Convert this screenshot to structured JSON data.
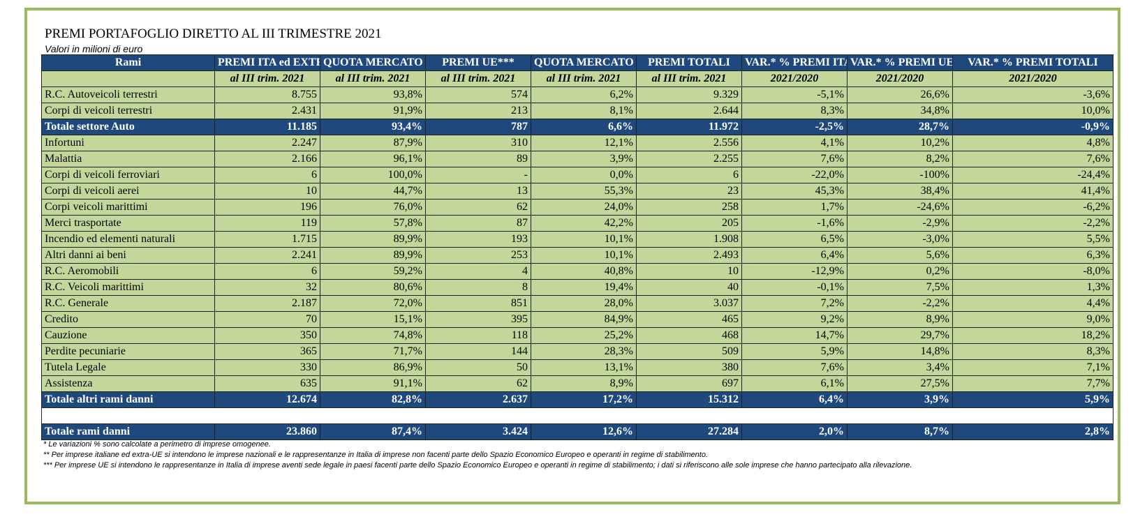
{
  "title": "PREMI PORTAFOGLIO DIRETTO AL III TRIMESTRE 2021",
  "subtitle": "Valori in milioni di euro",
  "header": [
    "Rami",
    "PREMI ITA ed EXTRA UE**",
    "QUOTA MERCATO ITA ed EXTRA UE",
    "PREMI UE***",
    "QUOTA MERCATO UE",
    "PREMI TOTALI",
    "VAR.* % PREMI ITA ed EXTRA UE",
    "VAR.* % PREMI UE",
    "VAR.* % PREMI TOTALI"
  ],
  "subheader": [
    "",
    "al III trim. 2021",
    "al III trim. 2021",
    "al III trim. 2021",
    "al III trim. 2021",
    "al III trim. 2021",
    "2021/2020",
    "2021/2020",
    "2021/2020"
  ],
  "auto_rows": [
    [
      "R.C. Autoveicoli terrestri",
      "8.755",
      "93,8%",
      "574",
      "6,2%",
      "9.329",
      "-5,1%",
      "26,6%",
      "-3,6%"
    ],
    [
      "Corpi di veicoli terrestri",
      "2.431",
      "91,9%",
      "213",
      "8,1%",
      "2.644",
      "8,3%",
      "34,8%",
      "10,0%"
    ]
  ],
  "total_auto": [
    "Totale settore Auto",
    "11.185",
    "93,4%",
    "787",
    "6,6%",
    "11.972",
    "-2,5%",
    "28,7%",
    "-0,9%"
  ],
  "other_rows": [
    [
      "Infortuni",
      "2.247",
      "87,9%",
      "310",
      "12,1%",
      "2.556",
      "4,1%",
      "10,2%",
      "4,8%"
    ],
    [
      "Malattia",
      "2.166",
      "96,1%",
      "89",
      "3,9%",
      "2.255",
      "7,6%",
      "8,2%",
      "7,6%"
    ],
    [
      "Corpi di veicoli ferroviari",
      "6",
      "100,0%",
      "-",
      "0,0%",
      "6",
      "-22,0%",
      "-100%",
      "-24,4%"
    ],
    [
      "Corpi di veicoli aerei",
      "10",
      "44,7%",
      "13",
      "55,3%",
      "23",
      "45,3%",
      "38,4%",
      "41,4%"
    ],
    [
      "Corpi veicoli marittimi",
      "196",
      "76,0%",
      "62",
      "24,0%",
      "258",
      "1,7%",
      "-24,6%",
      "-6,2%"
    ],
    [
      "Merci trasportate",
      "119",
      "57,8%",
      "87",
      "42,2%",
      "205",
      "-1,6%",
      "-2,9%",
      "-2,2%"
    ],
    [
      "Incendio ed elementi naturali",
      "1.715",
      "89,9%",
      "193",
      "10,1%",
      "1.908",
      "6,5%",
      "-3,0%",
      "5,5%"
    ],
    [
      "Altri danni ai beni",
      "2.241",
      "89,9%",
      "253",
      "10,1%",
      "2.493",
      "6,4%",
      "5,6%",
      "6,3%"
    ],
    [
      "R.C. Aeromobili",
      "6",
      "59,2%",
      "4",
      "40,8%",
      "10",
      "-12,9%",
      "0,2%",
      "-8,0%"
    ],
    [
      "R.C. Veicoli marittimi",
      "32",
      "80,6%",
      "8",
      "19,4%",
      "40",
      "-0,1%",
      "7,5%",
      "1,3%"
    ],
    [
      "R.C. Generale",
      "2.187",
      "72,0%",
      "851",
      "28,0%",
      "3.037",
      "7,2%",
      "-2,2%",
      "4,4%"
    ],
    [
      "Credito",
      "70",
      "15,1%",
      "395",
      "84,9%",
      "465",
      "9,2%",
      "8,9%",
      "9,0%"
    ],
    [
      "Cauzione",
      "350",
      "74,8%",
      "118",
      "25,2%",
      "468",
      "14,7%",
      "29,7%",
      "18,2%"
    ],
    [
      "Perdite pecuniarie",
      "365",
      "71,7%",
      "144",
      "28,3%",
      "509",
      "5,9%",
      "14,8%",
      "8,3%"
    ],
    [
      "Tutela Legale",
      "330",
      "86,9%",
      "50",
      "13,1%",
      "380",
      "7,6%",
      "3,4%",
      "7,1%"
    ],
    [
      "Assistenza",
      "635",
      "91,1%",
      "62",
      "8,9%",
      "697",
      "6,1%",
      "27,5%",
      "7,7%"
    ]
  ],
  "total_other": [
    "Totale altri rami danni",
    "12.674",
    "82,8%",
    "2.637",
    "17,2%",
    "15.312",
    "6,4%",
    "3,9%",
    "5,9%"
  ],
  "total_all": [
    "Totale rami danni",
    "23.860",
    "87,4%",
    "3.424",
    "12,6%",
    "27.284",
    "2,0%",
    "8,7%",
    "2,8%"
  ],
  "notes": [
    "* Le variazioni % sono calcolate a perimetro di imprese omogenee.",
    "** Per imprese italiane ed extra-UE si intendono le imprese nazionali e le rappresentanze in Italia di imprese non facenti parte dello Spazio Economico Europeo e operanti in regime di stabilimento.",
    "*** Per imprese UE si intendono le rappresentanze in Italia di imprese aventi sede legale in paesi facenti parte dello Spazio Economico Europeo e operanti in regime di stabilimento; i dati si riferiscono alle sole imprese che hanno partecipato alla rilevazione."
  ]
}
